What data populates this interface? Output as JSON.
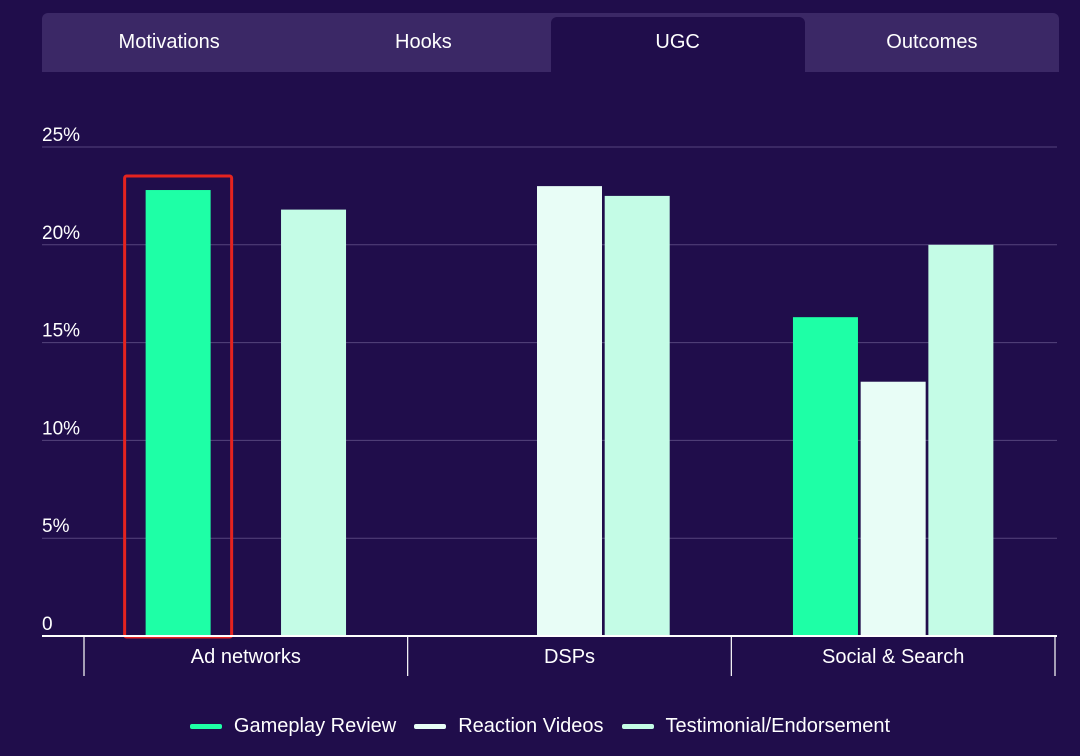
{
  "tabs": [
    {
      "label": "Motivations",
      "active": false
    },
    {
      "label": "Hooks",
      "active": false
    },
    {
      "label": "UGC",
      "active": true
    },
    {
      "label": "Outcomes",
      "active": false
    }
  ],
  "colors": {
    "background": "#200d4b",
    "grid": "#55447d",
    "axis": "#ffffff",
    "highlight": "#e5231f"
  },
  "chart_data": {
    "type": "bar",
    "categories": [
      "Ad networks",
      "DSPs",
      "Social & Search"
    ],
    "series": [
      {
        "name": "Gameplay Review",
        "color": "#1effa6",
        "values": [
          22.8,
          null,
          16.3
        ]
      },
      {
        "name": "Reaction Videos",
        "color": "#e8fdf6",
        "values": [
          null,
          23.0,
          13.0
        ]
      },
      {
        "name": "Testimonial/Endorsement",
        "color": "#c4fce6",
        "values": [
          21.8,
          22.5,
          20.0
        ]
      }
    ],
    "yticks": [
      "0",
      "5%",
      "10%",
      "15%",
      "20%",
      "25%"
    ],
    "ylim": [
      0,
      25
    ],
    "highlight": {
      "category": "Ad networks",
      "series": "Gameplay Review"
    },
    "legend_position": "bottom-center"
  }
}
